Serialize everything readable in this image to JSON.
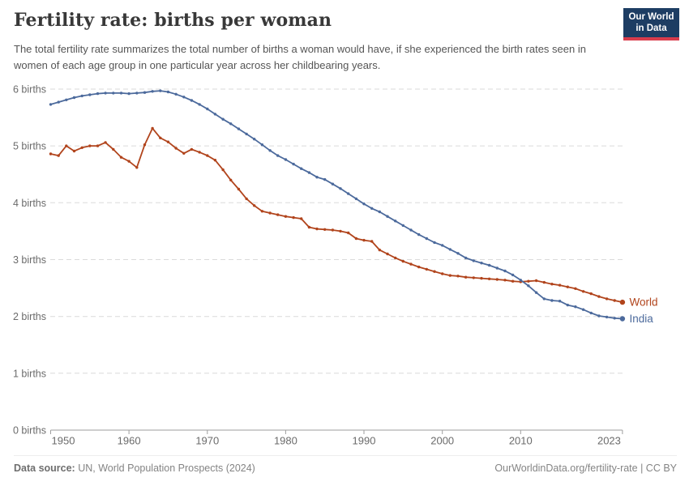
{
  "header": {
    "title": "Fertility rate: births per woman",
    "subtitle": "The total fertility rate summarizes the total number of births a woman would have, if she experienced the birth rates seen in women of each age group in one particular year across her childbearing years.",
    "logo": {
      "line1": "Our World",
      "line2": "in Data"
    }
  },
  "colors": {
    "world_series": "#b1441c",
    "india_series": "#4c6a9c",
    "logo_navy": "#1d3d63",
    "logo_red": "#d93c4c",
    "gridline": "#dadada",
    "axis": "#9e9e9e",
    "axis_label": "#6b6b6b"
  },
  "chart_data": {
    "type": "line",
    "title": "Fertility rate: births per woman",
    "xlabel": "",
    "ylabel": "births per woman",
    "ylim": [
      0,
      6
    ],
    "grid": "horizontal-dashed",
    "legend_position": "line-end-labels",
    "ytick_labels": [
      "0 births",
      "1 births",
      "2 births",
      "3 births",
      "4 births",
      "5 births",
      "6 births"
    ],
    "xticks": [
      1950,
      1960,
      1970,
      1980,
      1990,
      2000,
      2010,
      2023
    ],
    "years": [
      1950,
      1951,
      1952,
      1953,
      1954,
      1955,
      1956,
      1957,
      1958,
      1959,
      1960,
      1961,
      1962,
      1963,
      1964,
      1965,
      1966,
      1967,
      1968,
      1969,
      1970,
      1971,
      1972,
      1973,
      1974,
      1975,
      1976,
      1977,
      1978,
      1979,
      1980,
      1981,
      1982,
      1983,
      1984,
      1985,
      1986,
      1987,
      1988,
      1989,
      1990,
      1991,
      1992,
      1993,
      1994,
      1995,
      1996,
      1997,
      1998,
      1999,
      2000,
      2001,
      2002,
      2003,
      2004,
      2005,
      2006,
      2007,
      2008,
      2009,
      2010,
      2011,
      2012,
      2013,
      2014,
      2015,
      2016,
      2017,
      2018,
      2019,
      2020,
      2021,
      2022,
      2023
    ],
    "series": [
      {
        "name": "World",
        "color": "#b1441c",
        "values": [
          4.86,
          4.83,
          5.0,
          4.91,
          4.97,
          5.0,
          5.0,
          5.06,
          4.94,
          4.8,
          4.73,
          4.62,
          5.02,
          5.31,
          5.14,
          5.07,
          4.96,
          4.87,
          4.94,
          4.89,
          4.83,
          4.75,
          4.58,
          4.4,
          4.24,
          4.07,
          3.95,
          3.85,
          3.82,
          3.79,
          3.76,
          3.74,
          3.72,
          3.57,
          3.54,
          3.53,
          3.52,
          3.5,
          3.47,
          3.37,
          3.34,
          3.32,
          3.17,
          3.1,
          3.03,
          2.97,
          2.92,
          2.87,
          2.83,
          2.79,
          2.75,
          2.72,
          2.71,
          2.69,
          2.68,
          2.67,
          2.66,
          2.65,
          2.64,
          2.62,
          2.61,
          2.62,
          2.63,
          2.6,
          2.57,
          2.55,
          2.52,
          2.49,
          2.44,
          2.4,
          2.35,
          2.31,
          2.28,
          2.25
        ]
      },
      {
        "name": "India",
        "color": "#4c6a9c",
        "values": [
          5.73,
          5.77,
          5.81,
          5.85,
          5.88,
          5.9,
          5.92,
          5.93,
          5.93,
          5.93,
          5.92,
          5.93,
          5.94,
          5.96,
          5.97,
          5.95,
          5.91,
          5.86,
          5.8,
          5.73,
          5.65,
          5.56,
          5.47,
          5.39,
          5.3,
          5.21,
          5.12,
          5.02,
          4.92,
          4.83,
          4.76,
          4.68,
          4.6,
          4.53,
          4.45,
          4.41,
          4.33,
          4.25,
          4.16,
          4.07,
          3.98,
          3.9,
          3.84,
          3.76,
          3.68,
          3.6,
          3.52,
          3.44,
          3.37,
          3.3,
          3.25,
          3.18,
          3.11,
          3.03,
          2.98,
          2.94,
          2.9,
          2.85,
          2.8,
          2.73,
          2.64,
          2.54,
          2.42,
          2.31,
          2.28,
          2.27,
          2.2,
          2.17,
          2.12,
          2.06,
          2.01,
          1.99,
          1.97,
          1.96
        ]
      }
    ]
  },
  "footer": {
    "source_label": "Data source:",
    "source_text": "UN, World Population Prospects (2024)",
    "credit": "OurWorldinData.org/fertility-rate | CC BY"
  }
}
